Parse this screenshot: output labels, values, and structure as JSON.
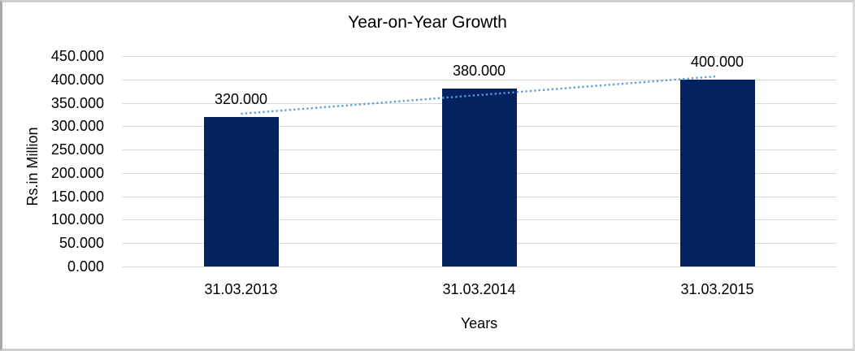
{
  "chart_data": {
    "type": "bar",
    "title": "Year-on-Year Growth",
    "xlabel": "Years",
    "ylabel": "Rs.in Million",
    "categories": [
      "31.03.2013",
      "31.03.2014",
      "31.03.2015"
    ],
    "values": [
      320,
      380,
      400
    ],
    "data_labels": [
      "320.000",
      "380.000",
      "400.000"
    ],
    "y_ticks": [
      "0.000",
      "50.000",
      "100.000",
      "150.000",
      "200.000",
      "250.000",
      "300.000",
      "350.000",
      "400.000",
      "450.000"
    ],
    "ylim": [
      0,
      450
    ],
    "y_step": 50,
    "grid": true,
    "legend": "none",
    "bar_color": "#02235f",
    "gridline_color": "#d9d9d9",
    "text_color": "#000000",
    "trendline": {
      "type": "linear",
      "style": "dotted",
      "color": "#5b9bd5"
    }
  }
}
